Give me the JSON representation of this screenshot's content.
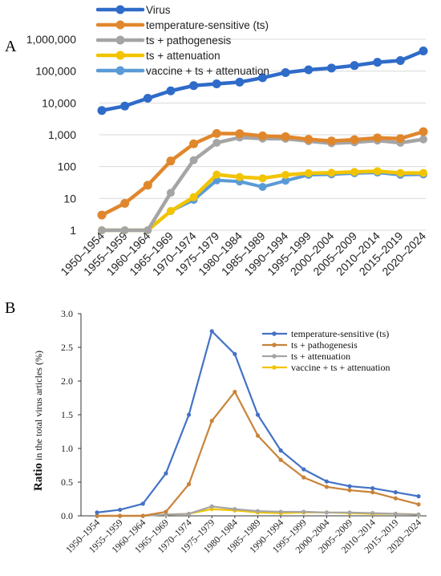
{
  "figure": {
    "panel_a_letter": "A",
    "panel_b_letter": "B"
  },
  "chart_data": [
    {
      "type": "line",
      "panel": "A",
      "y_scale": "log",
      "ylim": [
        1,
        1000000
      ],
      "y_ticks": [
        "1",
        "10",
        "100",
        "1,000",
        "10,000",
        "100,000",
        "1,000,000"
      ],
      "y_tick_values": [
        1,
        10,
        100,
        1000,
        10000,
        100000,
        1000000
      ],
      "categories": [
        "1950–1954",
        "1955–1959",
        "1960–1964",
        "1965–1969",
        "1970–1974",
        "1975–1979",
        "1980–1984",
        "1985–1989",
        "1990–1994",
        "1995–1999",
        "2000–2004",
        "2005–2009",
        "2010–2014",
        "2015–2019",
        "2020–2024"
      ],
      "grid": "horizontal",
      "legend_position": "top-left",
      "series": [
        {
          "name": "Virus",
          "color": "#2f6bc9",
          "values": [
            5800,
            8000,
            14000,
            24000,
            35000,
            40000,
            45000,
            62000,
            90000,
            110000,
            125000,
            150000,
            190000,
            215000,
            430000
          ]
        },
        {
          "name": "temperature-sensitive (ts)",
          "color": "#e0872d",
          "values": [
            3,
            7,
            26,
            150,
            520,
            1100,
            1080,
            920,
            870,
            720,
            640,
            700,
            800,
            760,
            1250
          ]
        },
        {
          "name": "ts + pathogenesis",
          "color": "#a5a5a5",
          "values": [
            1,
            1,
            1,
            15,
            160,
            560,
            820,
            760,
            750,
            630,
            540,
            580,
            660,
            560,
            720
          ]
        },
        {
          "name": "ts + attenuation",
          "color": "#f2c400",
          "values": [
            1,
            1,
            1,
            4,
            11,
            56,
            47,
            43,
            55,
            62,
            64,
            68,
            72,
            63,
            63
          ]
        },
        {
          "name": "vaccine + ts + attenuation",
          "color": "#5b9bd5",
          "values": [
            null,
            null,
            null,
            4,
            9,
            37,
            34,
            23,
            36,
            55,
            57,
            62,
            65,
            55,
            57
          ]
        }
      ]
    },
    {
      "type": "line",
      "panel": "B",
      "ylabel_main": "Ratio",
      "ylabel_rest": " in the total virus articles (%)",
      "ylim": [
        0,
        3.0
      ],
      "y_ticks": [
        "0.0",
        "0.5",
        "1.0",
        "1.5",
        "2.0",
        "2.5",
        "3.0"
      ],
      "y_tick_values": [
        0,
        0.5,
        1.0,
        1.5,
        2.0,
        2.5,
        3.0
      ],
      "categories": [
        "1950–1954",
        "1955–1959",
        "1960–1964",
        "1965–1969",
        "1970–1974",
        "1975–1979",
        "1980–1984",
        "1985–1989",
        "1990–1994",
        "1995–1999",
        "2000–2004",
        "2005–2009",
        "2010–2014",
        "2015–2019",
        "2020–2024"
      ],
      "grid": "none",
      "legend_position": "top-right",
      "series": [
        {
          "name": "temperature-sensitive (ts)",
          "color": "#4472c4",
          "values": [
            0.05,
            0.09,
            0.18,
            0.63,
            1.5,
            2.74,
            2.4,
            1.5,
            0.97,
            0.69,
            0.51,
            0.44,
            0.41,
            0.35,
            0.29
          ]
        },
        {
          "name": "ts + pathogenesis",
          "color": "#c9833a",
          "values": [
            0.0,
            0.0,
            0.0,
            0.06,
            0.47,
            1.41,
            1.84,
            1.19,
            0.83,
            0.57,
            0.43,
            0.38,
            0.35,
            0.26,
            0.17
          ]
        },
        {
          "name": "ts + attenuation",
          "color": "#a5a5a5",
          "values": [
            0.0,
            0.0,
            0.0,
            0.02,
            0.03,
            0.14,
            0.1,
            0.07,
            0.06,
            0.06,
            0.05,
            0.05,
            0.04,
            0.03,
            0.02
          ]
        },
        {
          "name": "vaccine + ts + attenuation",
          "color": "#f2c400",
          "values": [
            0.0,
            0.0,
            0.0,
            0.02,
            0.03,
            0.1,
            0.08,
            0.05,
            0.04,
            0.05,
            0.05,
            0.04,
            0.03,
            0.03,
            0.02
          ]
        }
      ]
    }
  ]
}
